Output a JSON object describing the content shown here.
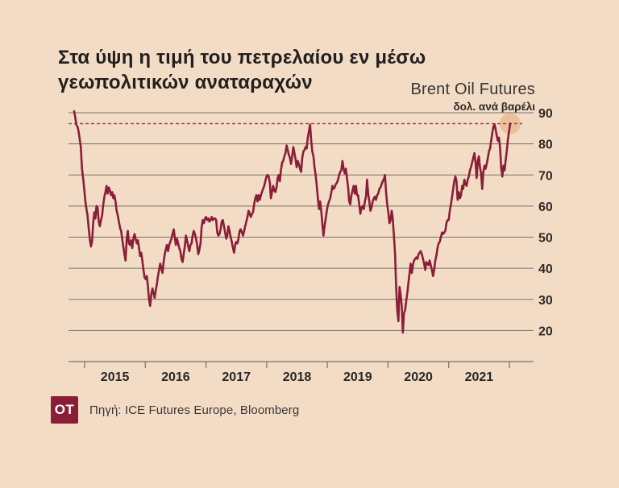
{
  "header": {
    "title_line1": "Στα ύψη η τιμή του πετρελαίου εν μέσω",
    "title_line2": "γεωπολιτικών αναταραχών",
    "series_label": "Brent Oil Futures",
    "unit_label": "δολ. ανά βαρέλι"
  },
  "footer": {
    "logo_text": "OT",
    "source_text": "Πηγή: ICE Futures Europe, Bloomberg"
  },
  "colors": {
    "background": "#f2dcc6",
    "line": "#8b1d37",
    "grid": "#7d7166",
    "dashed_high": "#a04a3e",
    "highlight_circle": "#e7b286",
    "text_dark": "#231f1c"
  },
  "chart_data": {
    "type": "line",
    "title": "Στα ύψη η τιμή του πετρελαίου εν μέσω γεωπολιτικών αναταραχών",
    "ylabel": "δολ. ανά βαρέλι",
    "x_range": [
      "2014-10",
      "2022-01"
    ],
    "x_tick_years": [
      "2015",
      "2016",
      "2017",
      "2018",
      "2019",
      "2020",
      "2021"
    ],
    "y_ticks": [
      90,
      80,
      70,
      60,
      50,
      40,
      30,
      20
    ],
    "ylim": [
      10,
      90
    ],
    "grid": "horizontal",
    "legend_position": "none",
    "high_line_value": 86.5,
    "series": [
      {
        "name": "Brent Oil Futures (USD/barrel, weekly)",
        "values": [
          90.5,
          88.5,
          86.0,
          85.5,
          84.0,
          81.5,
          79.0,
          72.0,
          69.0,
          65.5,
          61.5,
          59.0,
          57.0,
          53.0,
          49.5,
          47.0,
          48.5,
          54.5,
          58.0,
          56.0,
          60.0,
          59.5,
          55.0,
          53.5,
          55.5,
          57.0,
          60.5,
          63.0,
          64.5,
          66.5,
          64.0,
          66.0,
          65.0,
          63.5,
          64.5,
          62.5,
          63.5,
          61.5,
          58.5,
          57.0,
          55.0,
          53.0,
          52.0,
          49.5,
          47.0,
          44.5,
          42.5,
          49.5,
          52.0,
          48.0,
          47.5,
          49.0,
          46.5,
          49.5,
          51.0,
          49.5,
          48.0,
          49.0,
          46.5,
          44.0,
          45.0,
          42.5,
          39.5,
          37.0,
          36.5,
          37.5,
          34.0,
          30.0,
          27.9,
          31.5,
          33.5,
          32.0,
          30.5,
          33.0,
          35.0,
          37.5,
          39.5,
          41.5,
          40.0,
          38.5,
          42.0,
          44.5,
          46.0,
          47.5,
          45.5,
          47.5,
          48.5,
          49.5,
          51.0,
          52.5,
          50.0,
          47.5,
          49.5,
          48.0,
          46.5,
          45.5,
          43.0,
          42.0,
          44.5,
          47.0,
          50.5,
          49.0,
          47.0,
          45.5,
          47.5,
          48.0,
          50.5,
          52.0,
          51.0,
          49.5,
          47.5,
          44.5,
          46.0,
          48.0,
          53.0,
          55.5,
          54.5,
          56.0,
          56.5,
          55.5,
          56.0,
          55.0,
          55.5,
          56.5,
          55.5,
          56.0,
          56.0,
          55.5,
          51.5,
          50.5,
          51.0,
          52.5,
          55.0,
          55.5,
          53.5,
          51.5,
          49.5,
          50.5,
          53.5,
          52.0,
          50.0,
          48.5,
          46.5,
          45.0,
          47.5,
          48.5,
          48.0,
          49.5,
          52.0,
          52.5,
          51.5,
          50.5,
          52.0,
          53.5,
          55.0,
          56.5,
          58.5,
          57.5,
          56.5,
          57.5,
          58.0,
          60.5,
          62.5,
          63.5,
          61.5,
          63.5,
          62.0,
          63.5,
          64.5,
          65.5,
          66.5,
          68.0,
          69.5,
          70.0,
          69.5,
          67.5,
          62.5,
          64.5,
          66.5,
          65.0,
          64.5,
          66.0,
          69.0,
          70.0,
          68.0,
          71.5,
          74.0,
          74.5,
          76.0,
          77.0,
          79.5,
          78.0,
          76.5,
          75.5,
          73.5,
          76.0,
          79.0,
          77.0,
          75.0,
          72.5,
          74.5,
          73.5,
          72.0,
          71.0,
          75.5,
          77.5,
          78.0,
          79.0,
          78.5,
          82.0,
          84.0,
          86.2,
          81.0,
          77.5,
          76.0,
          72.5,
          70.0,
          66.5,
          62.5,
          59.0,
          61.5,
          58.5,
          54.0,
          50.5,
          53.5,
          56.0,
          58.5,
          60.5,
          61.5,
          62.5,
          64.5,
          66.5,
          65.5,
          66.0,
          67.0,
          67.5,
          68.5,
          70.0,
          71.0,
          71.5,
          74.5,
          72.0,
          70.5,
          72.0,
          69.0,
          66.0,
          61.5,
          60.5,
          63.5,
          65.0,
          66.5,
          64.0,
          66.5,
          63.5,
          63.5,
          60.5,
          57.5,
          59.5,
          60.0,
          59.0,
          61.5,
          63.0,
          68.5,
          64.0,
          61.5,
          58.5,
          59.5,
          61.5,
          62.5,
          63.0,
          62.0,
          63.5,
          64.0,
          65.5,
          66.0,
          67.0,
          68.0,
          68.5,
          70.0,
          64.5,
          60.5,
          58.0,
          54.5,
          55.5,
          58.5,
          56.0,
          50.5,
          45.0,
          34.0,
          26.5,
          23.0,
          34.0,
          31.5,
          28.0,
          19.3,
          25.5,
          26.5,
          29.5,
          32.0,
          35.5,
          38.5,
          41.5,
          38.5,
          41.0,
          42.5,
          43.0,
          43.5,
          43.0,
          44.5,
          45.0,
          45.5,
          44.5,
          43.0,
          41.5,
          39.5,
          42.0,
          41.5,
          41.0,
          42.5,
          41.0,
          39.5,
          37.5,
          39.5,
          42.5,
          44.0,
          46.5,
          48.0,
          48.5,
          50.0,
          51.5,
          51.0,
          51.5,
          52.0,
          54.5,
          55.5,
          55.5,
          58.5,
          60.5,
          63.0,
          65.5,
          68.0,
          69.5,
          68.0,
          62.0,
          64.5,
          62.5,
          63.5,
          66.5,
          65.5,
          68.5,
          67.0,
          66.5,
          68.5,
          69.5,
          71.5,
          72.5,
          74.0,
          75.5,
          77.0,
          74.0,
          69.0,
          74.5,
          76.0,
          72.5,
          70.5,
          65.5,
          71.0,
          73.0,
          72.0,
          73.5,
          75.5,
          77.5,
          78.5,
          81.0,
          83.5,
          85.5,
          86.3,
          84.5,
          82.5,
          81.0,
          82.0,
          78.5,
          72.0,
          69.5,
          73.0,
          71.5,
          75.0,
          77.8,
          81.5,
          84.0,
          86.5
        ]
      }
    ]
  }
}
